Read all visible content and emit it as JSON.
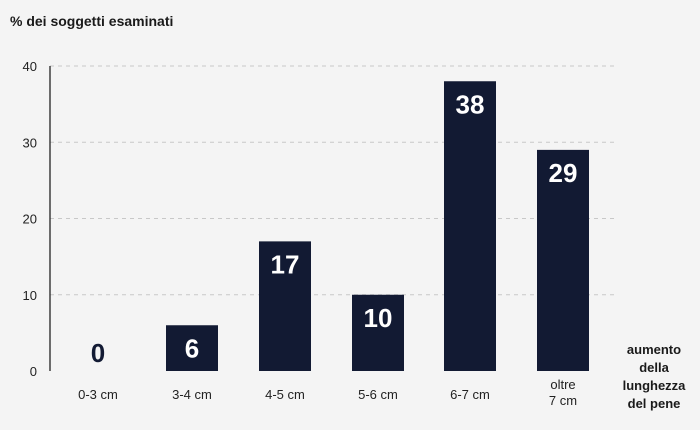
{
  "chart_data": {
    "type": "bar",
    "ylabel": "% dei soggetti esaminati",
    "xlabel": [
      "aumento",
      "della",
      "lunghezza",
      "del pene"
    ],
    "categories": [
      [
        "0-3 cm"
      ],
      [
        "3-4 cm"
      ],
      [
        "4-5 cm"
      ],
      [
        "5-6 cm"
      ],
      [
        "6-7 cm"
      ],
      [
        "oltre",
        "7 cm"
      ]
    ],
    "values": [
      0,
      6,
      17,
      10,
      38,
      29
    ],
    "data_labels": [
      "0",
      "6",
      "17",
      "10",
      "38",
      "29"
    ],
    "y_ticks": [
      "0",
      "10",
      "20",
      "30",
      "40"
    ],
    "ylim": [
      0,
      40
    ],
    "grid": true,
    "bar_color": "#121a33",
    "label_color_inside": "#ffffff",
    "label_color_outside": "#121a33"
  }
}
